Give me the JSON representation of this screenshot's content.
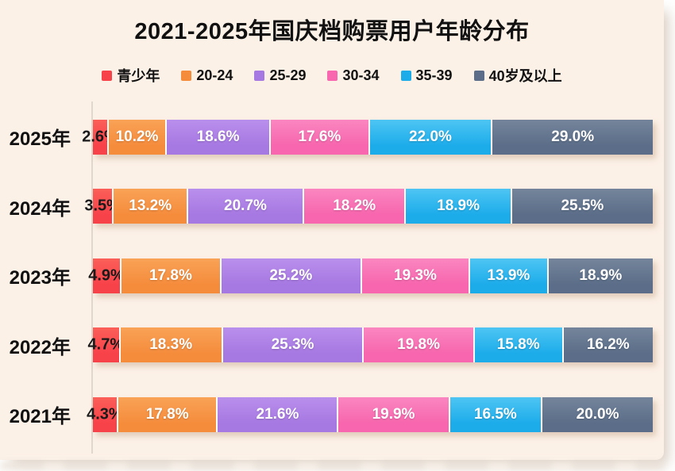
{
  "title": "2021-2025年国庆档购票用户年龄分布",
  "colors": {
    "card_background": "#fcf1e7",
    "title_text": "#111111",
    "axis_line": "#e0d8cc",
    "value_label": "#ffffff",
    "first_segment_label": "#1a1a1a"
  },
  "chart_data": {
    "type": "bar",
    "orientation": "horizontal-stacked",
    "title": "2021-2025年国庆档购票用户年龄分布",
    "legend_position": "top",
    "value_suffix": "%",
    "xlim": [
      0,
      100
    ],
    "grid": false,
    "categories": [
      "2025年",
      "2024年",
      "2023年",
      "2022年",
      "2021年"
    ],
    "series": [
      {
        "name": "青少年",
        "color": "#f8424a",
        "color_light": "#fb5f58",
        "values": [
          2.6,
          3.5,
          4.9,
          4.7,
          4.3
        ]
      },
      {
        "name": "20-24",
        "color": "#f58c3c",
        "color_light": "#f9a256",
        "values": [
          10.2,
          13.2,
          17.8,
          18.3,
          17.8
        ]
      },
      {
        "name": "25-29",
        "color": "#a678e2",
        "color_light": "#b98fec",
        "values": [
          18.6,
          20.7,
          25.2,
          25.3,
          21.6
        ]
      },
      {
        "name": "30-34",
        "color": "#f766ae",
        "color_light": "#fa86c0",
        "values": [
          17.6,
          18.2,
          19.3,
          19.8,
          19.9
        ]
      },
      {
        "name": "35-39",
        "color": "#1cacea",
        "color_light": "#4ec5f3",
        "values": [
          22.0,
          18.9,
          13.9,
          15.8,
          16.5
        ]
      },
      {
        "name": "40岁及以上",
        "color": "#5b6d88",
        "color_light": "#74859b",
        "values": [
          29.0,
          25.5,
          18.9,
          16.2,
          20.0
        ]
      }
    ]
  }
}
